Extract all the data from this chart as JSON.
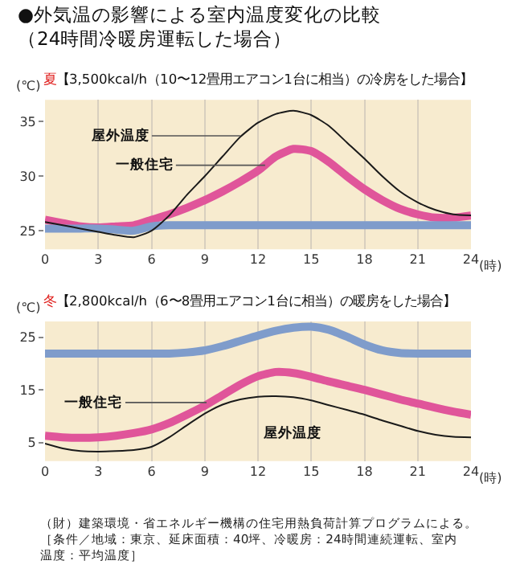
{
  "chart_data": [
    {
      "type": "line",
      "title": "●外気温の影響による室内温度変化の比較（24時間冷暖房運転した場合）",
      "subtitle": "夏【3,500kcal/h（10〜12畳用エアコン1台に相当）の冷房をした場合】",
      "xlabel": "(時)",
      "ylabel": "(℃)",
      "x": [
        0,
        1,
        2,
        3,
        4,
        5,
        6,
        7,
        8,
        9,
        10,
        11,
        12,
        13,
        14,
        15,
        16,
        17,
        18,
        19,
        20,
        21,
        22,
        23,
        24
      ],
      "series": [
        {
          "color": "#1a1a1a",
          "values": [
            25.8,
            25.5,
            25.2,
            24.9,
            24.6,
            24.4,
            25.0,
            26.4,
            28.3,
            30.0,
            31.8,
            33.6,
            34.9,
            35.7,
            36.0,
            35.6,
            34.6,
            33.1,
            31.6,
            30.0,
            28.6,
            27.6,
            26.9,
            26.5,
            26.4
          ]
        },
        {
          "color": "#e0559a",
          "values": [
            26.0,
            25.7,
            25.4,
            25.3,
            25.4,
            25.5,
            26.0,
            26.5,
            27.1,
            27.8,
            28.6,
            29.5,
            30.5,
            31.8,
            32.5,
            32.3,
            31.3,
            30.0,
            28.8,
            27.8,
            27.0,
            26.5,
            26.2,
            26.2,
            26.4
          ]
        },
        {
          "color": "#7f9ccb",
          "values": [
            25.2,
            25.2,
            25.2,
            25.2,
            25.1,
            25.0,
            25.4,
            25.5,
            25.5,
            25.5,
            25.5,
            25.5,
            25.5,
            25.5,
            25.5,
            25.5,
            25.5,
            25.5,
            25.5,
            25.5,
            25.5,
            25.5,
            25.5,
            25.5,
            25.5
          ]
        }
      ],
      "annotations": [
        {
          "text": "屋外温度",
          "x": 11,
          "y": 33.7
        },
        {
          "text": "一般住宅",
          "x": 12.4,
          "y": 31
        }
      ],
      "xlim": [
        0,
        24
      ],
      "xticks": [
        0,
        3,
        6,
        9,
        12,
        15,
        18,
        21,
        24
      ],
      "ylim": [
        23.3,
        37
      ],
      "yticks": [
        25,
        30,
        35
      ],
      "grid": "x"
    },
    {
      "type": "line",
      "subtitle": "冬【2,800kcal/h（6〜8畳用エアコン1台に相当）の暖房をした場合】",
      "xlabel": "(時)",
      "ylabel": "(℃)",
      "x": [
        0,
        1,
        2,
        3,
        4,
        5,
        6,
        7,
        8,
        9,
        10,
        11,
        12,
        13,
        14,
        15,
        16,
        17,
        18,
        19,
        20,
        21,
        22,
        23,
        24
      ],
      "series": [
        {
          "color": "#1a1a1a",
          "values": [
            4.8,
            3.9,
            3.4,
            3.3,
            3.4,
            3.6,
            4.2,
            6.0,
            8.3,
            10.5,
            12.2,
            13.2,
            13.7,
            13.8,
            13.6,
            13.0,
            12.1,
            11.2,
            10.3,
            9.2,
            8.2,
            7.2,
            6.5,
            6.1,
            6.0
          ]
        },
        {
          "color": "#e0559a",
          "values": [
            6.3,
            6.0,
            5.9,
            6.0,
            6.3,
            6.8,
            7.5,
            8.7,
            10.3,
            12.0,
            14.0,
            16.0,
            17.6,
            18.4,
            18.2,
            17.5,
            16.6,
            15.8,
            15.0,
            14.1,
            13.2,
            12.4,
            11.6,
            10.9,
            10.3
          ]
        },
        {
          "color": "#7f9ccb",
          "values": [
            21.9,
            21.9,
            21.9,
            21.9,
            21.9,
            21.9,
            21.9,
            21.9,
            22.1,
            22.5,
            23.3,
            24.3,
            25.3,
            26.2,
            26.8,
            27.0,
            26.4,
            25.1,
            23.6,
            22.5,
            22.0,
            21.9,
            21.9,
            21.9,
            21.9
          ]
        }
      ],
      "annotations": [
        {
          "text": "一般住宅",
          "x": 9.1,
          "y": 12.6
        },
        {
          "text": "屋外温度",
          "x": 13,
          "y": 13.8
        },
        "（財）建築環境・省エネルギー機構の住宅用熱負荷計算プログラムによる。［条件／地域：東京、延床面積：40坪、冷暖房：24時間連続運転、室内温度：平均温度］"
      ],
      "xlim": [
        0,
        24
      ],
      "xticks": [
        0,
        3,
        6,
        9,
        12,
        15,
        18,
        21,
        24
      ],
      "ylim": [
        1.5,
        28
      ],
      "yticks": [
        5,
        15,
        25
      ],
      "grid": "x"
    }
  ]
}
